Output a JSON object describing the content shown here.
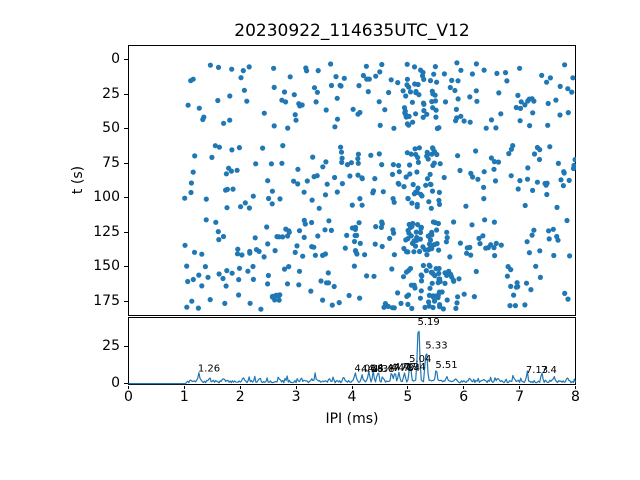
{
  "title": "20230922_114635UTC_V12",
  "colors": {
    "series": "#1f77b4",
    "spine": "#000000",
    "text": "#000000",
    "background": "#ffffff"
  },
  "chart_data": [
    {
      "type": "scatter",
      "title": "20230922_114635UTC_V12",
      "xlabel": "IPI (ms)",
      "ylabel": "t (s)",
      "xlim": [
        0,
        8
      ],
      "ylim": [
        185,
        -11
      ],
      "y_axis_inverted": true,
      "yticks": [
        "0",
        "25",
        "50",
        "75",
        "100",
        "125",
        "150",
        "175"
      ],
      "marker_color": "#1f77b4",
      "note": "~640 unlabeled points, positions estimated from pixels; uniform in x from 1 to 8 with dense vertical cluster near x=5.2; points occur in four time bands separated by empty gaps",
      "x_range_of_points": [
        0.98,
        8.0
      ],
      "dense_x_cluster": {
        "x0": 4.92,
        "x1": 5.58,
        "fraction": 0.2
      },
      "time_bands": [
        {
          "t0": 2,
          "t1": 50,
          "n": 170
        },
        {
          "t0": 62,
          "t1": 108,
          "n": 175
        },
        {
          "t0": 116,
          "t1": 143,
          "n": 150
        },
        {
          "t0": 149,
          "t1": 181,
          "n": 145
        }
      ],
      "seed": 42
    },
    {
      "type": "line",
      "xlabel": "IPI (ms)",
      "ylabel": "",
      "xlim": [
        0,
        8
      ],
      "ylim": [
        0,
        45
      ],
      "yticks": [
        "0",
        "25"
      ],
      "xticks": [
        "0",
        "1",
        "2",
        "3",
        "4",
        "5",
        "6",
        "7",
        "8"
      ],
      "line_color": "#1f77b4",
      "flat_zero_until_x": 1.04,
      "baseline_noise": {
        "min": 0.7,
        "max": 2.4
      },
      "seed": 7,
      "peaks": [
        {
          "x": 1.26,
          "h": 5.5,
          "label": "1.26"
        },
        {
          "x": 4.06,
          "h": 5.5,
          "label": "4.06"
        },
        {
          "x": 4.18,
          "h": 5.0,
          "label": "4.18"
        },
        {
          "x": 4.3,
          "h": 5.5,
          "label": "4.3"
        },
        {
          "x": 4.38,
          "h": 5.2,
          "label": "4.38"
        },
        {
          "x": 4.47,
          "h": 6.0,
          "label": "4.47"
        },
        {
          "x": 4.71,
          "h": 6.2,
          "label": "4.71"
        },
        {
          "x": 4.77,
          "h": 6.4,
          "label": "4.77"
        },
        {
          "x": 4.84,
          "h": 6.0,
          "label": "4.84"
        },
        {
          "x": 4.94,
          "h": 6.4,
          "label": "4.94"
        },
        {
          "x": 5.04,
          "h": 12.0,
          "label": "5.04",
          "w": 0.026
        },
        {
          "x": 5.19,
          "h": 38.0,
          "label": "5.19",
          "w": 0.028
        },
        {
          "x": 5.33,
          "h": 21.0,
          "label": "5.33",
          "w": 0.026
        },
        {
          "x": 5.51,
          "h": 8.0,
          "label": "5.51"
        },
        {
          "x": 7.13,
          "h": 4.5,
          "label": "7.13"
        },
        {
          "x": 7.4,
          "h": 4.5,
          "label": "7.4"
        }
      ],
      "minor_bumps": [
        {
          "x": 1.45,
          "h": 2.5
        },
        {
          "x": 1.7,
          "h": 2.0
        },
        {
          "x": 2.05,
          "h": 2.5
        },
        {
          "x": 2.35,
          "h": 2.0
        },
        {
          "x": 2.7,
          "h": 1.5
        },
        {
          "x": 3.1,
          "h": 2.0
        },
        {
          "x": 3.35,
          "h": 2.5
        },
        {
          "x": 3.6,
          "h": 2.0
        },
        {
          "x": 3.85,
          "h": 2.5
        },
        {
          "x": 4.55,
          "h": 3.0
        },
        {
          "x": 5.7,
          "h": 3.0
        },
        {
          "x": 5.85,
          "h": 2.5
        },
        {
          "x": 6.1,
          "h": 2.0
        },
        {
          "x": 6.35,
          "h": 2.0
        },
        {
          "x": 6.6,
          "h": 2.5
        },
        {
          "x": 6.9,
          "h": 2.0
        },
        {
          "x": 7.6,
          "h": 2.5
        },
        {
          "x": 7.85,
          "h": 3.0
        }
      ]
    }
  ]
}
